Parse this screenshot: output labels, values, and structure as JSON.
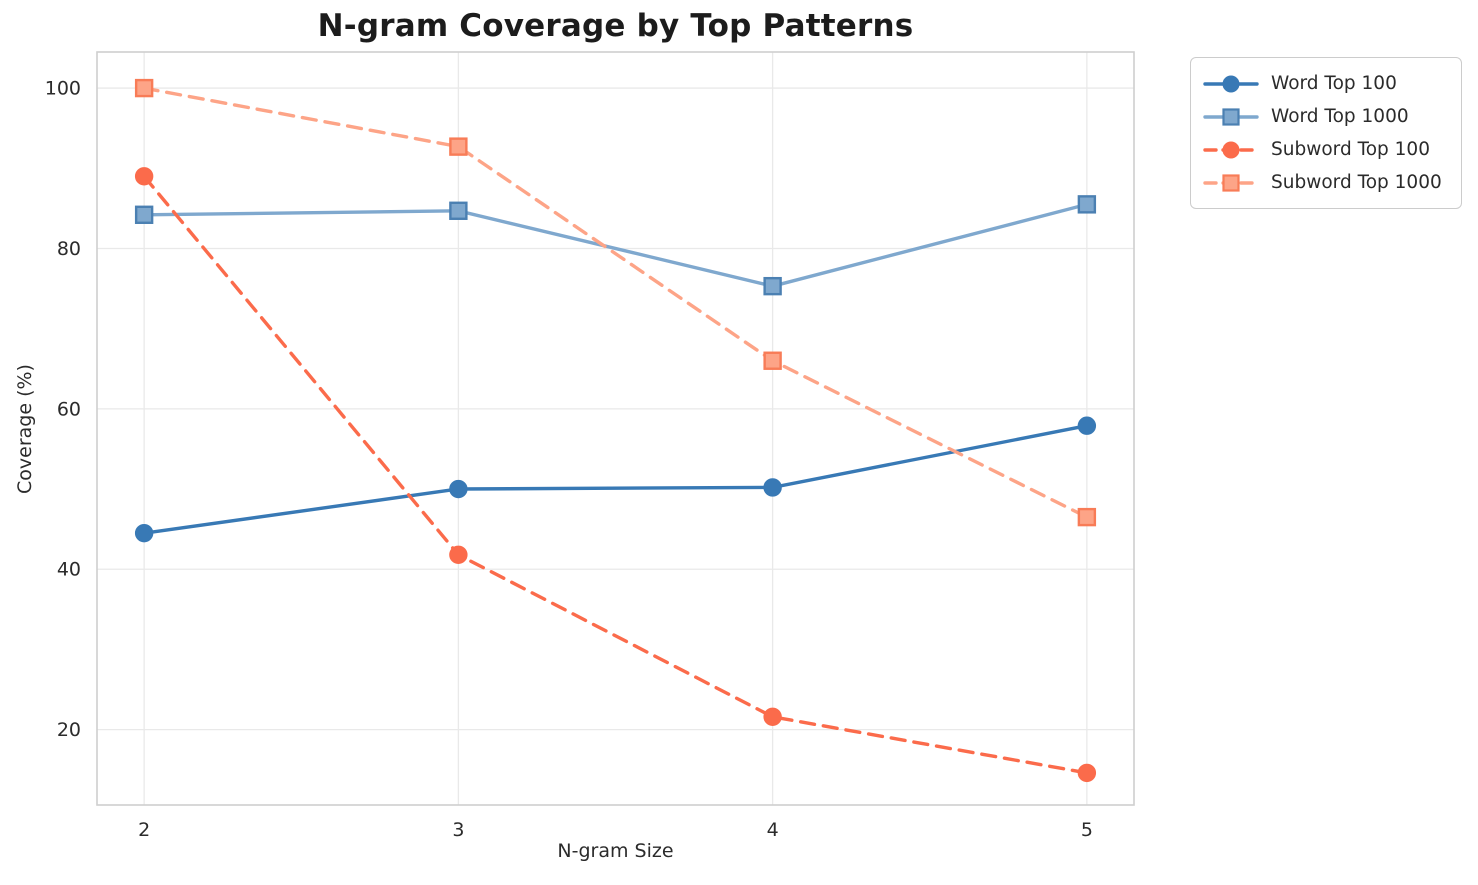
{
  "chart_data": {
    "type": "line",
    "title": "N-gram Coverage by Top Patterns",
    "xlabel": "N-gram Size",
    "ylabel": "Coverage (%)",
    "x": [
      2,
      3,
      4,
      5
    ],
    "series": [
      {
        "name": "Word Top 100",
        "values": [
          44.5,
          50.0,
          50.2,
          57.9
        ],
        "color": "#3879b5",
        "marker_edge": "#3879b5",
        "dash": "solid",
        "marker": "circle"
      },
      {
        "name": "Word Top 1000",
        "values": [
          84.2,
          84.7,
          75.3,
          85.5
        ],
        "color": "#7fa8ce",
        "marker_edge": "#4b80b2",
        "dash": "solid",
        "marker": "square"
      },
      {
        "name": "Subword Top 100",
        "values": [
          89.0,
          41.8,
          21.6,
          14.6
        ],
        "color": "#fb6b4b",
        "marker_edge": "#fb6b4b",
        "dash": "dashed",
        "marker": "circle"
      },
      {
        "name": "Subword Top 1000",
        "values": [
          100.0,
          92.7,
          66.0,
          46.5
        ],
        "color": "#fda487",
        "marker_edge": "#f87c57",
        "dash": "dashed",
        "marker": "square"
      }
    ],
    "xticks": [
      2,
      3,
      4,
      5
    ],
    "yticks": [
      20,
      40,
      60,
      80,
      100
    ],
    "xlim": [
      1.85,
      5.15
    ],
    "ylim": [
      10.6,
      104.5
    ],
    "grid": true,
    "legend_position": "outside-top-right",
    "colors": {
      "grid": "#e9e9e9",
      "spine": "#cfcfcf",
      "tick_text": "#2b2b2b",
      "title_text": "#1c1c1c",
      "background": "#ffffff"
    }
  }
}
